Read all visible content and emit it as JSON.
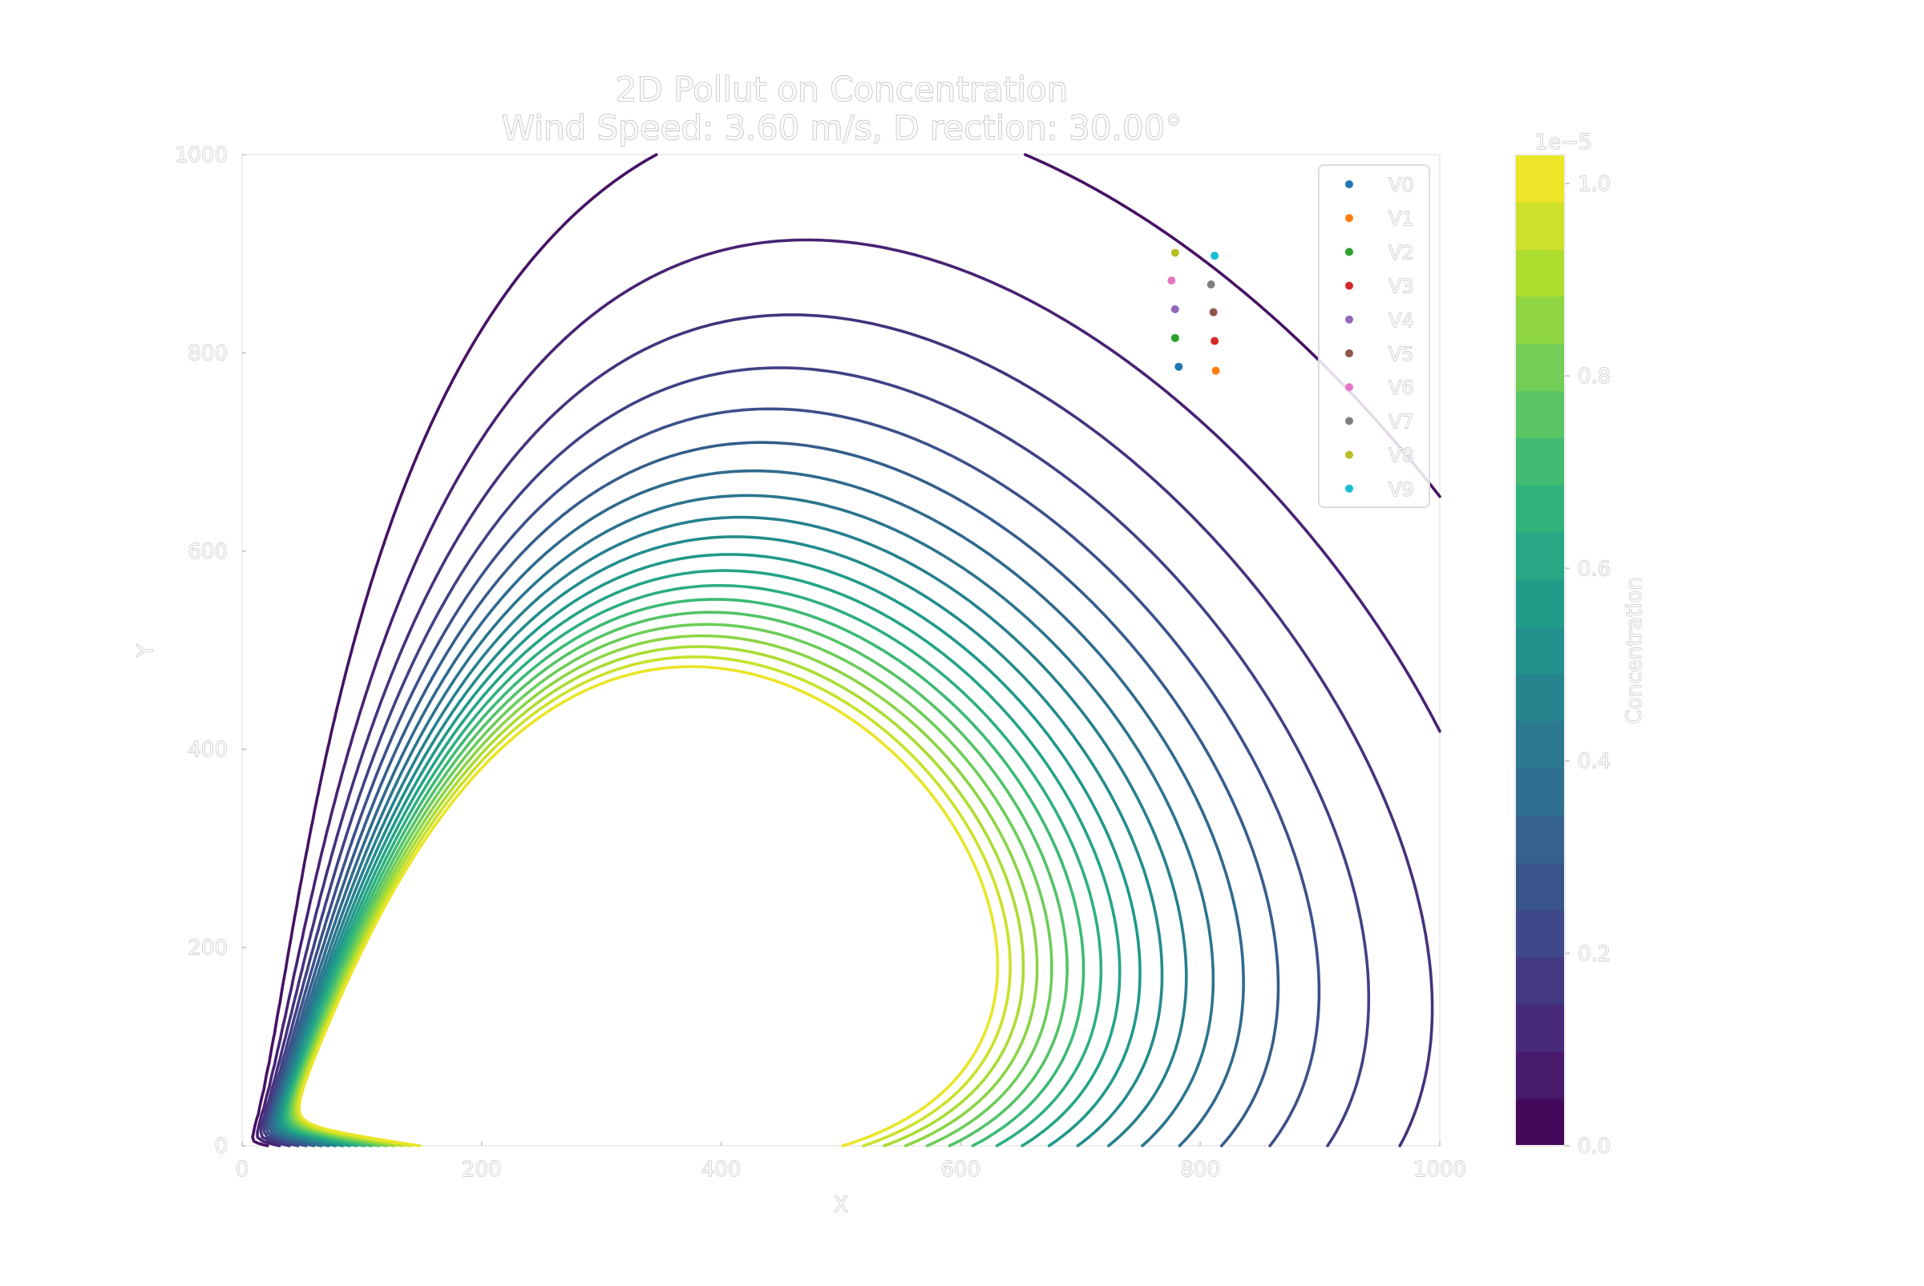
{
  "chart_data": {
    "type": "contour",
    "title_line1": "2D Pollut on Concentration",
    "title_line2": "Wind Speed: 3.60 m/s, D rection: 30.00°",
    "xlabel": "X",
    "ylabel": "Y",
    "xlim": [
      0,
      1000
    ],
    "ylim": [
      0,
      1000
    ],
    "xticks": [
      "0",
      "200",
      "400",
      "600",
      "800",
      "1000"
    ],
    "yticks": [
      "0",
      "200",
      "400",
      "600",
      "800",
      "1000"
    ],
    "grid": false,
    "colormap": "viridis",
    "colorbar": {
      "label": "Concentration",
      "offset_text": "1e−5",
      "ticks": [
        "0.0",
        "0.2",
        "0.4",
        "0.6",
        "0.8",
        "1.0"
      ],
      "tick_values": [
        0.0,
        0.2,
        0.4,
        0.6,
        0.8,
        1.0
      ],
      "vmin": 0.0,
      "vmax": 1.03,
      "n_bands": 21
    },
    "contour_levels": [
      0.05,
      0.1,
      0.15,
      0.2,
      0.25,
      0.3,
      0.35,
      0.4,
      0.45,
      0.5,
      0.55,
      0.6,
      0.65,
      0.7,
      0.75,
      0.8,
      0.85,
      0.9,
      0.95,
      1.0
    ],
    "field": {
      "source": [
        0,
        0
      ],
      "wind_direction_deg": 30,
      "wind_speed_ms": 3.6,
      "peak_value": 1.02,
      "peak_location": [
        435,
        255
      ]
    },
    "legend_position": "upper-right",
    "vehicles": [
      {
        "name": "V0",
        "x": 782,
        "y": 786,
        "color": "#1f77b4"
      },
      {
        "name": "V1",
        "x": 813,
        "y": 782,
        "color": "#ff7f0e"
      },
      {
        "name": "V2",
        "x": 779,
        "y": 815,
        "color": "#2ca02c"
      },
      {
        "name": "V3",
        "x": 812,
        "y": 812,
        "color": "#d62728"
      },
      {
        "name": "V4",
        "x": 779,
        "y": 844,
        "color": "#9467bd"
      },
      {
        "name": "V5",
        "x": 811,
        "y": 841,
        "color": "#8c564b"
      },
      {
        "name": "V6",
        "x": 776,
        "y": 873,
        "color": "#e377c2"
      },
      {
        "name": "V7",
        "x": 809,
        "y": 869,
        "color": "#7f7f7f"
      },
      {
        "name": "V8",
        "x": 779,
        "y": 901,
        "color": "#bcbd22"
      },
      {
        "name": "V9",
        "x": 812,
        "y": 898,
        "color": "#17becf"
      }
    ]
  }
}
